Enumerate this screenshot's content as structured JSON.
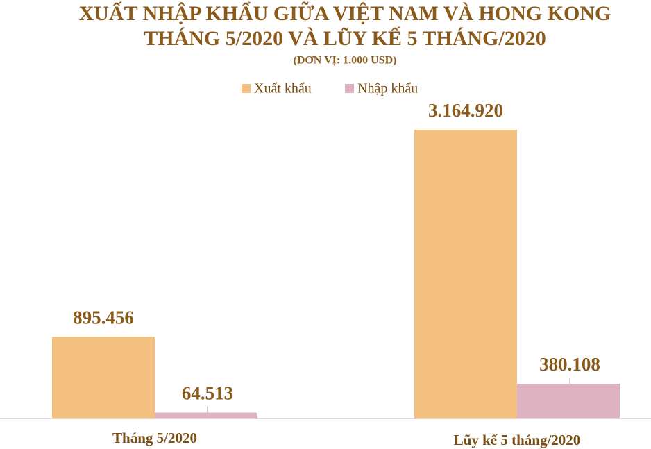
{
  "chart_data": {
    "type": "bar",
    "title": [
      "XUẤT NHẬP KHẨU GIỮA VIỆT NAM VÀ HONG KONG",
      "THÁNG 5/2020 VÀ LŨY KẾ 5 THÁNG/2020"
    ],
    "subtitle": "(ĐƠN VỊ: 1.000 USD)",
    "categories": [
      "Tháng 5/2020",
      "Lũy kế 5 tháng/2020"
    ],
    "series": [
      {
        "name": "Xuất khẩu",
        "color": "#f4c07f",
        "values": [
          895456,
          3164920
        ],
        "value_labels": [
          "895.456",
          "3.164.920"
        ]
      },
      {
        "name": "Nhập khẩu",
        "color": "#ddb3c1",
        "values": [
          64513,
          380108
        ],
        "value_labels": [
          "64.513",
          "380.108"
        ]
      }
    ],
    "legend": "top"
  }
}
